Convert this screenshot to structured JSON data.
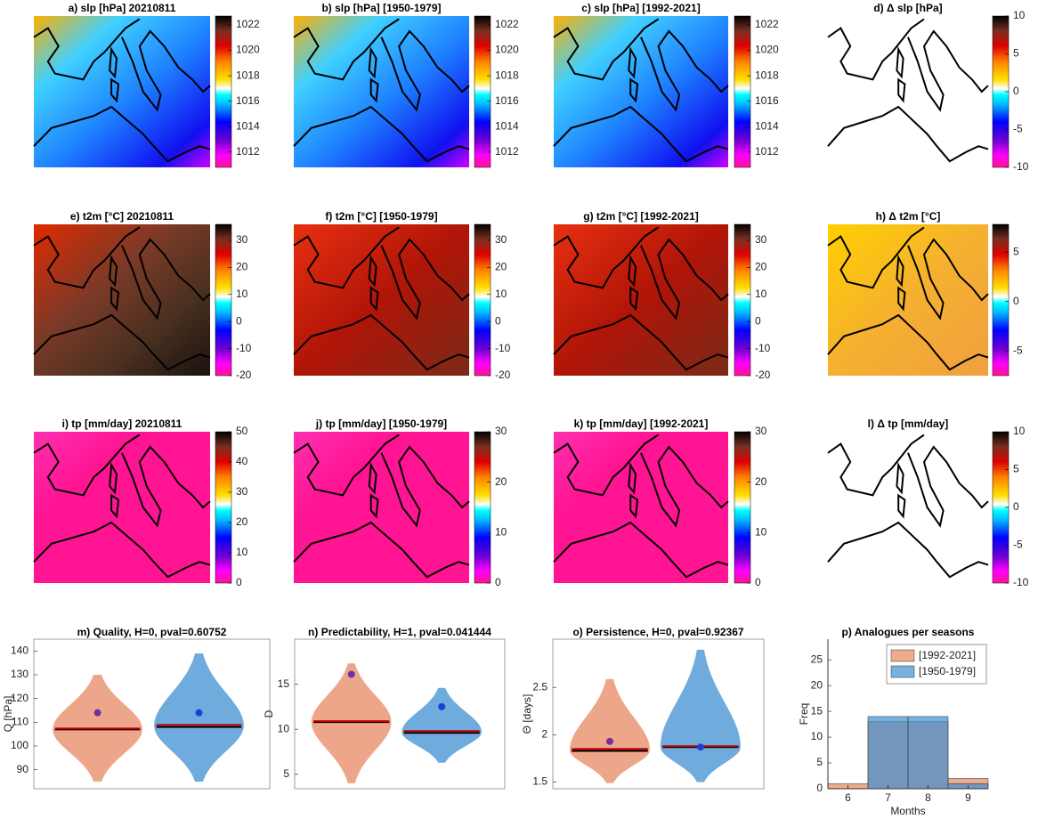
{
  "chart_data": [
    {
      "type": "map",
      "title": "a) slp [hPa] 20210811",
      "ylim": [
        1010.8,
        1022.7
      ],
      "yticks": [
        1012,
        1014,
        1016,
        1018,
        1020,
        1022
      ]
    },
    {
      "type": "map",
      "title": "b) slp [hPa] [1950-1979]",
      "ylim": [
        1010.8,
        1022.7
      ],
      "yticks": [
        1012,
        1014,
        1016,
        1018,
        1020,
        1022
      ]
    },
    {
      "type": "map",
      "title": "c) slp [hPa] [1992-2021]",
      "ylim": [
        1010.8,
        1022.7
      ],
      "yticks": [
        1012,
        1014,
        1016,
        1018,
        1020,
        1022
      ]
    },
    {
      "type": "map",
      "title": "d) Δ slp [hPa]",
      "ylim": [
        -10,
        10
      ],
      "yticks": [
        -10,
        -5,
        0,
        5,
        10
      ]
    },
    {
      "type": "map",
      "title": "e) t2m [°C] 20210811",
      "ylim": [
        -20,
        35.9
      ],
      "yticks": [
        -20,
        -10,
        0,
        10,
        20,
        30
      ]
    },
    {
      "type": "map",
      "title": "f) t2m [°C] [1950-1979]",
      "ylim": [
        -20,
        35.9
      ],
      "yticks": [
        -20,
        -10,
        0,
        10,
        20,
        30
      ]
    },
    {
      "type": "map",
      "title": "g) t2m [°C] [1992-2021]",
      "ylim": [
        -20,
        35.9
      ],
      "yticks": [
        -20,
        -10,
        0,
        10,
        20,
        30
      ]
    },
    {
      "type": "map",
      "title": "h) Δ t2m [°C]",
      "ylim": [
        -7.5,
        7.8
      ],
      "yticks": [
        -5,
        0,
        5
      ]
    },
    {
      "type": "map",
      "title": "i) tp [mm/day] 20210811",
      "ylim": [
        0,
        50
      ],
      "yticks": [
        0,
        10,
        20,
        30,
        40,
        50
      ]
    },
    {
      "type": "map",
      "title": "j) tp [mm/day] [1950-1979]",
      "ylim": [
        0,
        30
      ],
      "yticks": [
        0,
        10,
        20,
        30
      ]
    },
    {
      "type": "map",
      "title": "k) tp [mm/day] [1992-2021]",
      "ylim": [
        0,
        30
      ],
      "yticks": [
        0,
        10,
        20,
        30
      ]
    },
    {
      "type": "map",
      "title": "l) Δ tp [mm/day]",
      "ylim": [
        -10,
        10
      ],
      "yticks": [
        -10,
        -5,
        0,
        5,
        10
      ]
    },
    {
      "type": "violin",
      "title": "m)  Quality, H=0, pval=0.60752",
      "ylabel": "Q [hPa]",
      "ylim": [
        82,
        145
      ],
      "yticks": [
        90,
        100,
        110,
        120,
        130,
        140
      ],
      "series": [
        {
          "color": "#eda68a",
          "min": 85,
          "max": 130,
          "median": 107,
          "mean": 107,
          "point": 114,
          "point_color": "#7030a0"
        },
        {
          "color": "#6fabdd",
          "min": 85,
          "max": 139,
          "median": 108.5,
          "mean": 108,
          "point": 114,
          "point_color": "#1f3fd0"
        }
      ]
    },
    {
      "type": "violin",
      "title": "n)  Predictability, H=1, pval=0.041444",
      "ylabel": "D",
      "ylim": [
        3.4,
        20
      ],
      "yticks": [
        5,
        10,
        15
      ],
      "series": [
        {
          "color": "#eda68a",
          "min": 4,
          "max": 17.3,
          "median": 10.8,
          "mean": 10.8,
          "point": 16.1,
          "point_color": "#7030a0"
        },
        {
          "color": "#6fabdd",
          "min": 6.3,
          "max": 14.6,
          "median": 9.7,
          "mean": 9.6,
          "point": 12.5,
          "point_color": "#1f3fd0"
        }
      ]
    },
    {
      "type": "violin",
      "title": "o)  Persistence, H=0, pval=0.92367",
      "ylabel": "Θ [days]",
      "ylim": [
        1.43,
        3.01
      ],
      "yticks": [
        1.5,
        2,
        2.5
      ],
      "series": [
        {
          "color": "#eda68a",
          "min": 1.49,
          "max": 2.59,
          "median": 1.84,
          "mean": 1.83,
          "point": 1.93,
          "point_color": "#7030a0"
        },
        {
          "color": "#6fabdd",
          "min": 1.5,
          "max": 2.9,
          "median": 1.87,
          "mean": 1.87,
          "point": 1.87,
          "point_color": "#1f3fd0"
        }
      ]
    },
    {
      "type": "bar",
      "title": "p) Analogues per seasons",
      "xlabel": "Months",
      "ylabel": "Freq",
      "x": [
        6,
        7,
        8,
        9
      ],
      "xlim": [
        5.5,
        9.5
      ],
      "xticks": [
        6,
        7,
        8,
        9
      ],
      "ylim": [
        0,
        29
      ],
      "yticks": [
        0,
        5,
        10,
        15,
        20,
        25
      ],
      "legend": "upper right",
      "series": [
        {
          "name": "[1992-2021]",
          "color": "#e8875c",
          "values": [
            1,
            13,
            13,
            2
          ]
        },
        {
          "name": "[1950-1979]",
          "color": "#3f8fd0",
          "values": [
            0,
            14,
            14,
            1
          ]
        }
      ]
    }
  ]
}
